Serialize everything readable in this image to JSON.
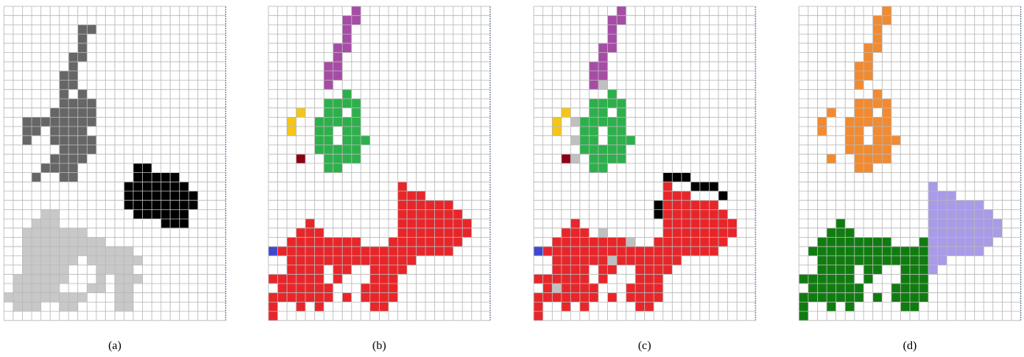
{
  "labels": [
    "(a)",
    "(b)",
    "(c)",
    "(d)"
  ]
}
